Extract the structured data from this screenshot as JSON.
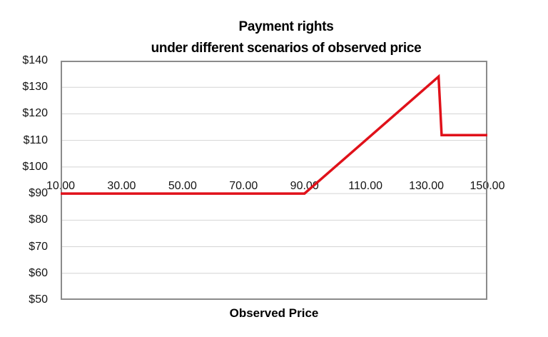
{
  "page": {
    "background": "#ffffff"
  },
  "chart_data": {
    "type": "line",
    "title": "Payment rights",
    "subtitle": "under different scenarios of observed price",
    "xlabel": "Observed Price",
    "ylabel": "",
    "xlim": [
      10,
      150
    ],
    "ylim": [
      50,
      140
    ],
    "grid": "horizontal",
    "legend": "none",
    "x_axis_cross_value": 90,
    "x_ticks": [
      {
        "value": 10,
        "label": "10.00"
      },
      {
        "value": 30,
        "label": "30.00"
      },
      {
        "value": 50,
        "label": "50.00"
      },
      {
        "value": 70,
        "label": "70.00"
      },
      {
        "value": 90,
        "label": "90.00"
      },
      {
        "value": 110,
        "label": "110.00"
      },
      {
        "value": 130,
        "label": "130.00"
      },
      {
        "value": 150,
        "label": "150.00"
      }
    ],
    "y_ticks": [
      {
        "value": 140,
        "label": "$140"
      },
      {
        "value": 130,
        "label": "$130"
      },
      {
        "value": 120,
        "label": "$120"
      },
      {
        "value": 110,
        "label": "$110"
      },
      {
        "value": 100,
        "label": "$100"
      },
      {
        "value": 90,
        "label": "$90"
      },
      {
        "value": 80,
        "label": "$80"
      },
      {
        "value": 70,
        "label": "$70"
      },
      {
        "value": 60,
        "label": "$60"
      },
      {
        "value": 50,
        "label": "$50"
      }
    ],
    "colors": {
      "line": "#e0111a",
      "gridline": "#d4d4d4",
      "plot_border": "#8b8b8b",
      "text": "#141414"
    },
    "series": [
      {
        "name": "Payment rights",
        "color": "#e0111a",
        "points": [
          [
            10,
            90
          ],
          [
            30,
            90
          ],
          [
            50,
            90
          ],
          [
            70,
            90
          ],
          [
            90,
            90
          ],
          [
            110,
            110
          ],
          [
            130,
            130
          ],
          [
            134,
            134
          ],
          [
            135,
            112
          ],
          [
            150,
            112
          ]
        ]
      }
    ]
  }
}
